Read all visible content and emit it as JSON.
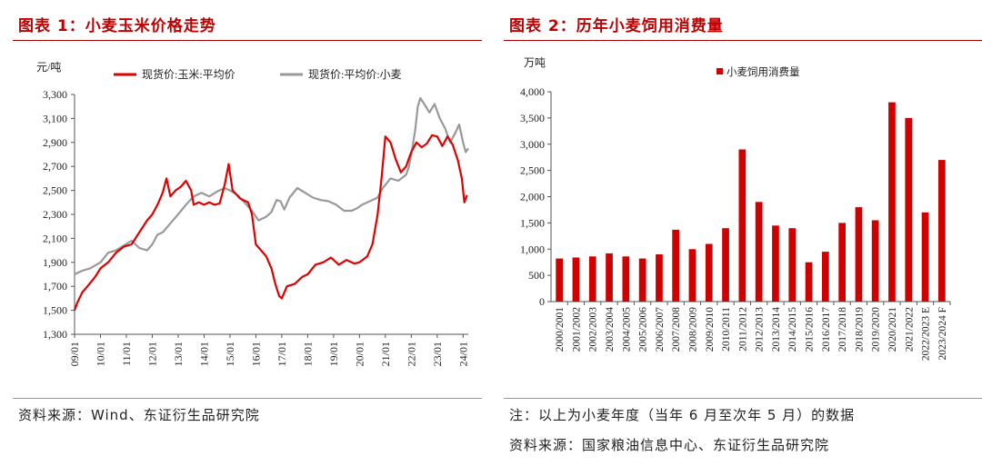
{
  "left": {
    "title": "图表 1：小麦玉米价格走势",
    "source": "资料来源：Wind、东证衍生品研究院",
    "chart_data": {
      "type": "line",
      "title": "小麦玉米价格走势",
      "unit": "元/吨",
      "ylim": [
        1300,
        3300
      ],
      "yticks": [
        "1,300",
        "1,500",
        "1,700",
        "1,900",
        "2,100",
        "2,300",
        "2,500",
        "2,700",
        "2,900",
        "3,100",
        "3,300"
      ],
      "ytick_values": [
        1300,
        1500,
        1700,
        1900,
        2100,
        2300,
        2500,
        2700,
        2900,
        3100,
        3300
      ],
      "xticks": [
        "09/01",
        "10/01",
        "11/01",
        "12/01",
        "13/01",
        "14/01",
        "15/01",
        "16/01",
        "17/01",
        "18/01",
        "19/01",
        "20/01",
        "21/01",
        "22/01",
        "23/01",
        "24/01"
      ],
      "xlim": [
        2009.0,
        2024.2
      ],
      "legend": "top",
      "series": [
        {
          "name": "现货价:玉米:平均价",
          "color": "#e00000",
          "points": [
            [
              2009.0,
              1500
            ],
            [
              2009.1,
              1560
            ],
            [
              2009.3,
              1650
            ],
            [
              2009.5,
              1700
            ],
            [
              2009.8,
              1780
            ],
            [
              2010.0,
              1850
            ],
            [
              2010.3,
              1900
            ],
            [
              2010.6,
              1980
            ],
            [
              2010.9,
              2030
            ],
            [
              2011.2,
              2050
            ],
            [
              2011.5,
              2150
            ],
            [
              2011.8,
              2250
            ],
            [
              2012.0,
              2300
            ],
            [
              2012.2,
              2380
            ],
            [
              2012.4,
              2480
            ],
            [
              2012.55,
              2600
            ],
            [
              2012.7,
              2450
            ],
            [
              2012.9,
              2500
            ],
            [
              2013.1,
              2530
            ],
            [
              2013.3,
              2580
            ],
            [
              2013.5,
              2500
            ],
            [
              2013.6,
              2380
            ],
            [
              2013.8,
              2400
            ],
            [
              2014.0,
              2380
            ],
            [
              2014.2,
              2400
            ],
            [
              2014.4,
              2380
            ],
            [
              2014.6,
              2390
            ],
            [
              2014.8,
              2550
            ],
            [
              2014.95,
              2720
            ],
            [
              2015.1,
              2500
            ],
            [
              2015.4,
              2430
            ],
            [
              2015.7,
              2400
            ],
            [
              2015.85,
              2300
            ],
            [
              2016.0,
              2050
            ],
            [
              2016.2,
              2000
            ],
            [
              2016.4,
              1950
            ],
            [
              2016.6,
              1850
            ],
            [
              2016.75,
              1720
            ],
            [
              2016.9,
              1620
            ],
            [
              2017.0,
              1600
            ],
            [
              2017.2,
              1700
            ],
            [
              2017.5,
              1720
            ],
            [
              2017.8,
              1780
            ],
            [
              2018.0,
              1800
            ],
            [
              2018.3,
              1880
            ],
            [
              2018.6,
              1900
            ],
            [
              2018.9,
              1940
            ],
            [
              2019.2,
              1880
            ],
            [
              2019.5,
              1920
            ],
            [
              2019.8,
              1890
            ],
            [
              2020.0,
              1900
            ],
            [
              2020.3,
              1950
            ],
            [
              2020.5,
              2050
            ],
            [
              2020.7,
              2300
            ],
            [
              2020.85,
              2600
            ],
            [
              2021.0,
              2950
            ],
            [
              2021.2,
              2900
            ],
            [
              2021.4,
              2760
            ],
            [
              2021.6,
              2650
            ],
            [
              2021.8,
              2700
            ],
            [
              2022.0,
              2820
            ],
            [
              2022.2,
              2900
            ],
            [
              2022.4,
              2860
            ],
            [
              2022.6,
              2890
            ],
            [
              2022.8,
              2960
            ],
            [
              2023.0,
              2950
            ],
            [
              2023.2,
              2870
            ],
            [
              2023.4,
              2950
            ],
            [
              2023.6,
              2880
            ],
            [
              2023.8,
              2750
            ],
            [
              2023.95,
              2600
            ],
            [
              2024.05,
              2400
            ],
            [
              2024.15,
              2460
            ]
          ]
        },
        {
          "name": "现货价:平均价:小麦",
          "color": "#999999",
          "points": [
            [
              2009.0,
              1800
            ],
            [
              2009.3,
              1830
            ],
            [
              2009.6,
              1850
            ],
            [
              2010.0,
              1900
            ],
            [
              2010.3,
              1980
            ],
            [
              2010.6,
              2000
            ],
            [
              2010.9,
              2040
            ],
            [
              2011.2,
              2080
            ],
            [
              2011.5,
              2020
            ],
            [
              2011.8,
              2000
            ],
            [
              2012.0,
              2050
            ],
            [
              2012.2,
              2130
            ],
            [
              2012.4,
              2150
            ],
            [
              2012.6,
              2200
            ],
            [
              2012.8,
              2250
            ],
            [
              2013.0,
              2300
            ],
            [
              2013.3,
              2380
            ],
            [
              2013.6,
              2450
            ],
            [
              2013.9,
              2480
            ],
            [
              2014.2,
              2450
            ],
            [
              2014.5,
              2490
            ],
            [
              2014.8,
              2520
            ],
            [
              2015.0,
              2500
            ],
            [
              2015.3,
              2460
            ],
            [
              2015.6,
              2390
            ],
            [
              2015.85,
              2330
            ],
            [
              2016.1,
              2250
            ],
            [
              2016.4,
              2280
            ],
            [
              2016.6,
              2320
            ],
            [
              2016.8,
              2420
            ],
            [
              2016.95,
              2410
            ],
            [
              2017.1,
              2340
            ],
            [
              2017.3,
              2440
            ],
            [
              2017.6,
              2520
            ],
            [
              2017.9,
              2480
            ],
            [
              2018.2,
              2440
            ],
            [
              2018.5,
              2420
            ],
            [
              2018.8,
              2410
            ],
            [
              2019.1,
              2380
            ],
            [
              2019.4,
              2330
            ],
            [
              2019.7,
              2330
            ],
            [
              2019.9,
              2350
            ],
            [
              2020.1,
              2380
            ],
            [
              2020.4,
              2410
            ],
            [
              2020.7,
              2440
            ],
            [
              2020.9,
              2520
            ],
            [
              2021.2,
              2600
            ],
            [
              2021.5,
              2580
            ],
            [
              2021.8,
              2630
            ],
            [
              2021.9,
              2690
            ],
            [
              2022.0,
              2800
            ],
            [
              2022.15,
              3000
            ],
            [
              2022.25,
              3200
            ],
            [
              2022.35,
              3270
            ],
            [
              2022.5,
              3220
            ],
            [
              2022.7,
              3150
            ],
            [
              2022.9,
              3220
            ],
            [
              2023.1,
              3100
            ],
            [
              2023.3,
              3020
            ],
            [
              2023.5,
              2900
            ],
            [
              2023.7,
              2980
            ],
            [
              2023.85,
              3050
            ],
            [
              2024.0,
              2900
            ],
            [
              2024.1,
              2820
            ],
            [
              2024.2,
              2850
            ]
          ]
        }
      ]
    }
  },
  "right": {
    "title": "图表 2：历年小麦饲用消费量",
    "note": "注：以上为小麦年度（当年 6 月至次年 5 月）的数据",
    "source": "资料来源：国家粮油信息中心、东证衍生品研究院",
    "chart_data": {
      "type": "bar",
      "title": "历年小麦饲用消费量",
      "unit": "万吨",
      "legend": "top",
      "series_name": "小麦饲用消费量",
      "color": "#d00000",
      "ylim": [
        0,
        4000
      ],
      "yticks": [
        "0",
        "500",
        "1,000",
        "1,500",
        "2,000",
        "2,500",
        "3,000",
        "3,500",
        "4,000"
      ],
      "ytick_values": [
        0,
        500,
        1000,
        1500,
        2000,
        2500,
        3000,
        3500,
        4000
      ],
      "categories": [
        "2000/2001",
        "2001/2002",
        "2002/2003",
        "2003/2004",
        "2004/2005",
        "2005/2006",
        "2006/2007",
        "2007/2008",
        "2008/2009",
        "2009/2010",
        "2010/2011",
        "2011/2012",
        "2012/2013",
        "2013/2014",
        "2014/2015",
        "2015/2016",
        "2016/2017",
        "2017/2018",
        "2018/2019",
        "2019/2020",
        "2020/2021",
        "2021/2022",
        "2022/2023 E",
        "2023/2024 F"
      ],
      "values": [
        820,
        840,
        860,
        920,
        860,
        820,
        900,
        1370,
        1000,
        1100,
        1400,
        2900,
        1900,
        1450,
        1400,
        750,
        950,
        1500,
        1800,
        1550,
        3800,
        3500,
        1700,
        2700
      ]
    }
  }
}
